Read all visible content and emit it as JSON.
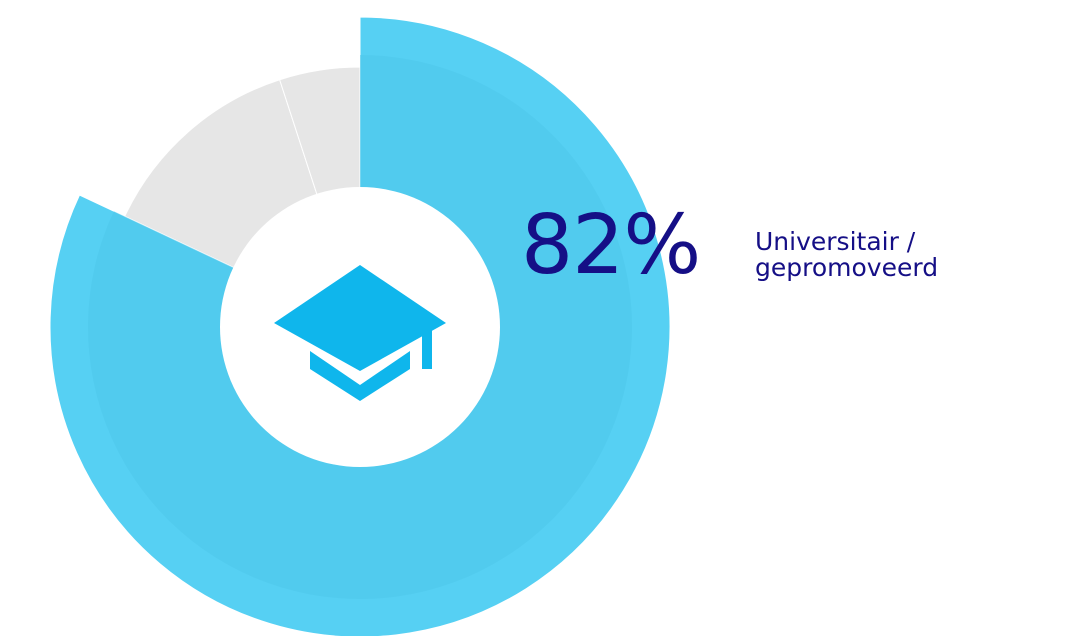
{
  "colors": {
    "primary_slice": "#56d0f3",
    "primary_inner": "#4fc6ea",
    "secondary_slice": "#e6e6e6",
    "label_text": "#150f86",
    "icon": "#0fb6ec",
    "center_disc": "#ffffff"
  },
  "icon": "graduation-cap-icon",
  "highlight": {
    "value_text": "82%",
    "label_line1": "Universitair /",
    "label_line2": "gepromoveerd"
  },
  "chart_data": {
    "type": "pie",
    "variant": "donut",
    "slices": [
      {
        "label": "Universitair / gepromoveerd",
        "value": 82,
        "color": "#56d0f3",
        "emphasis": "large-radius"
      },
      {
        "label": "",
        "value": 13,
        "color": "#e6e6e6"
      },
      {
        "label": "",
        "value": 5,
        "color": "#e6e6e6"
      }
    ],
    "start": "top",
    "direction": "clockwise"
  }
}
